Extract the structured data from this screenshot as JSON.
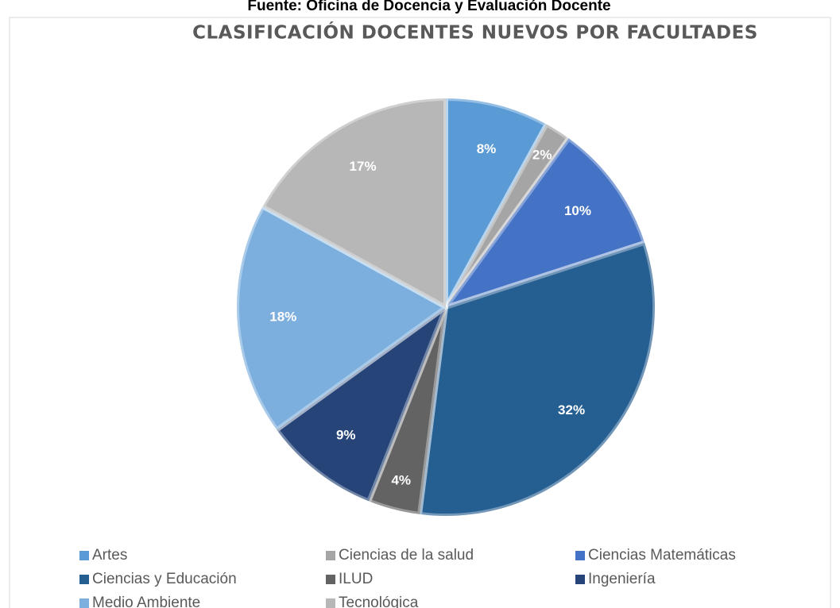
{
  "chart_data": {
    "type": "pie",
    "source": "Fuente: Oficina de Docencia y Evaluación Docente",
    "title": "CLASIFICACIÓN DOCENTES NUEVOS POR FACULTADES",
    "categories": [
      "Artes",
      "Ciencias de la salud",
      "Ciencias Matemáticas",
      "Ciencias y Educación",
      "ILUD",
      "Ingeniería",
      "Medio Ambiente",
      "Tecnológica"
    ],
    "values": [
      8,
      2,
      10,
      32,
      4,
      9,
      18,
      17
    ],
    "value_labels": [
      "8%",
      "2%",
      "10%",
      "32%",
      "4%",
      "9%",
      "18%",
      "17%"
    ],
    "colors": [
      "#5b9bd5",
      "#a5a5a5",
      "#4472c4",
      "#255e91",
      "#636363",
      "#264478",
      "#7cafdd",
      "#b7b7b7"
    ],
    "legend": "bottom"
  }
}
